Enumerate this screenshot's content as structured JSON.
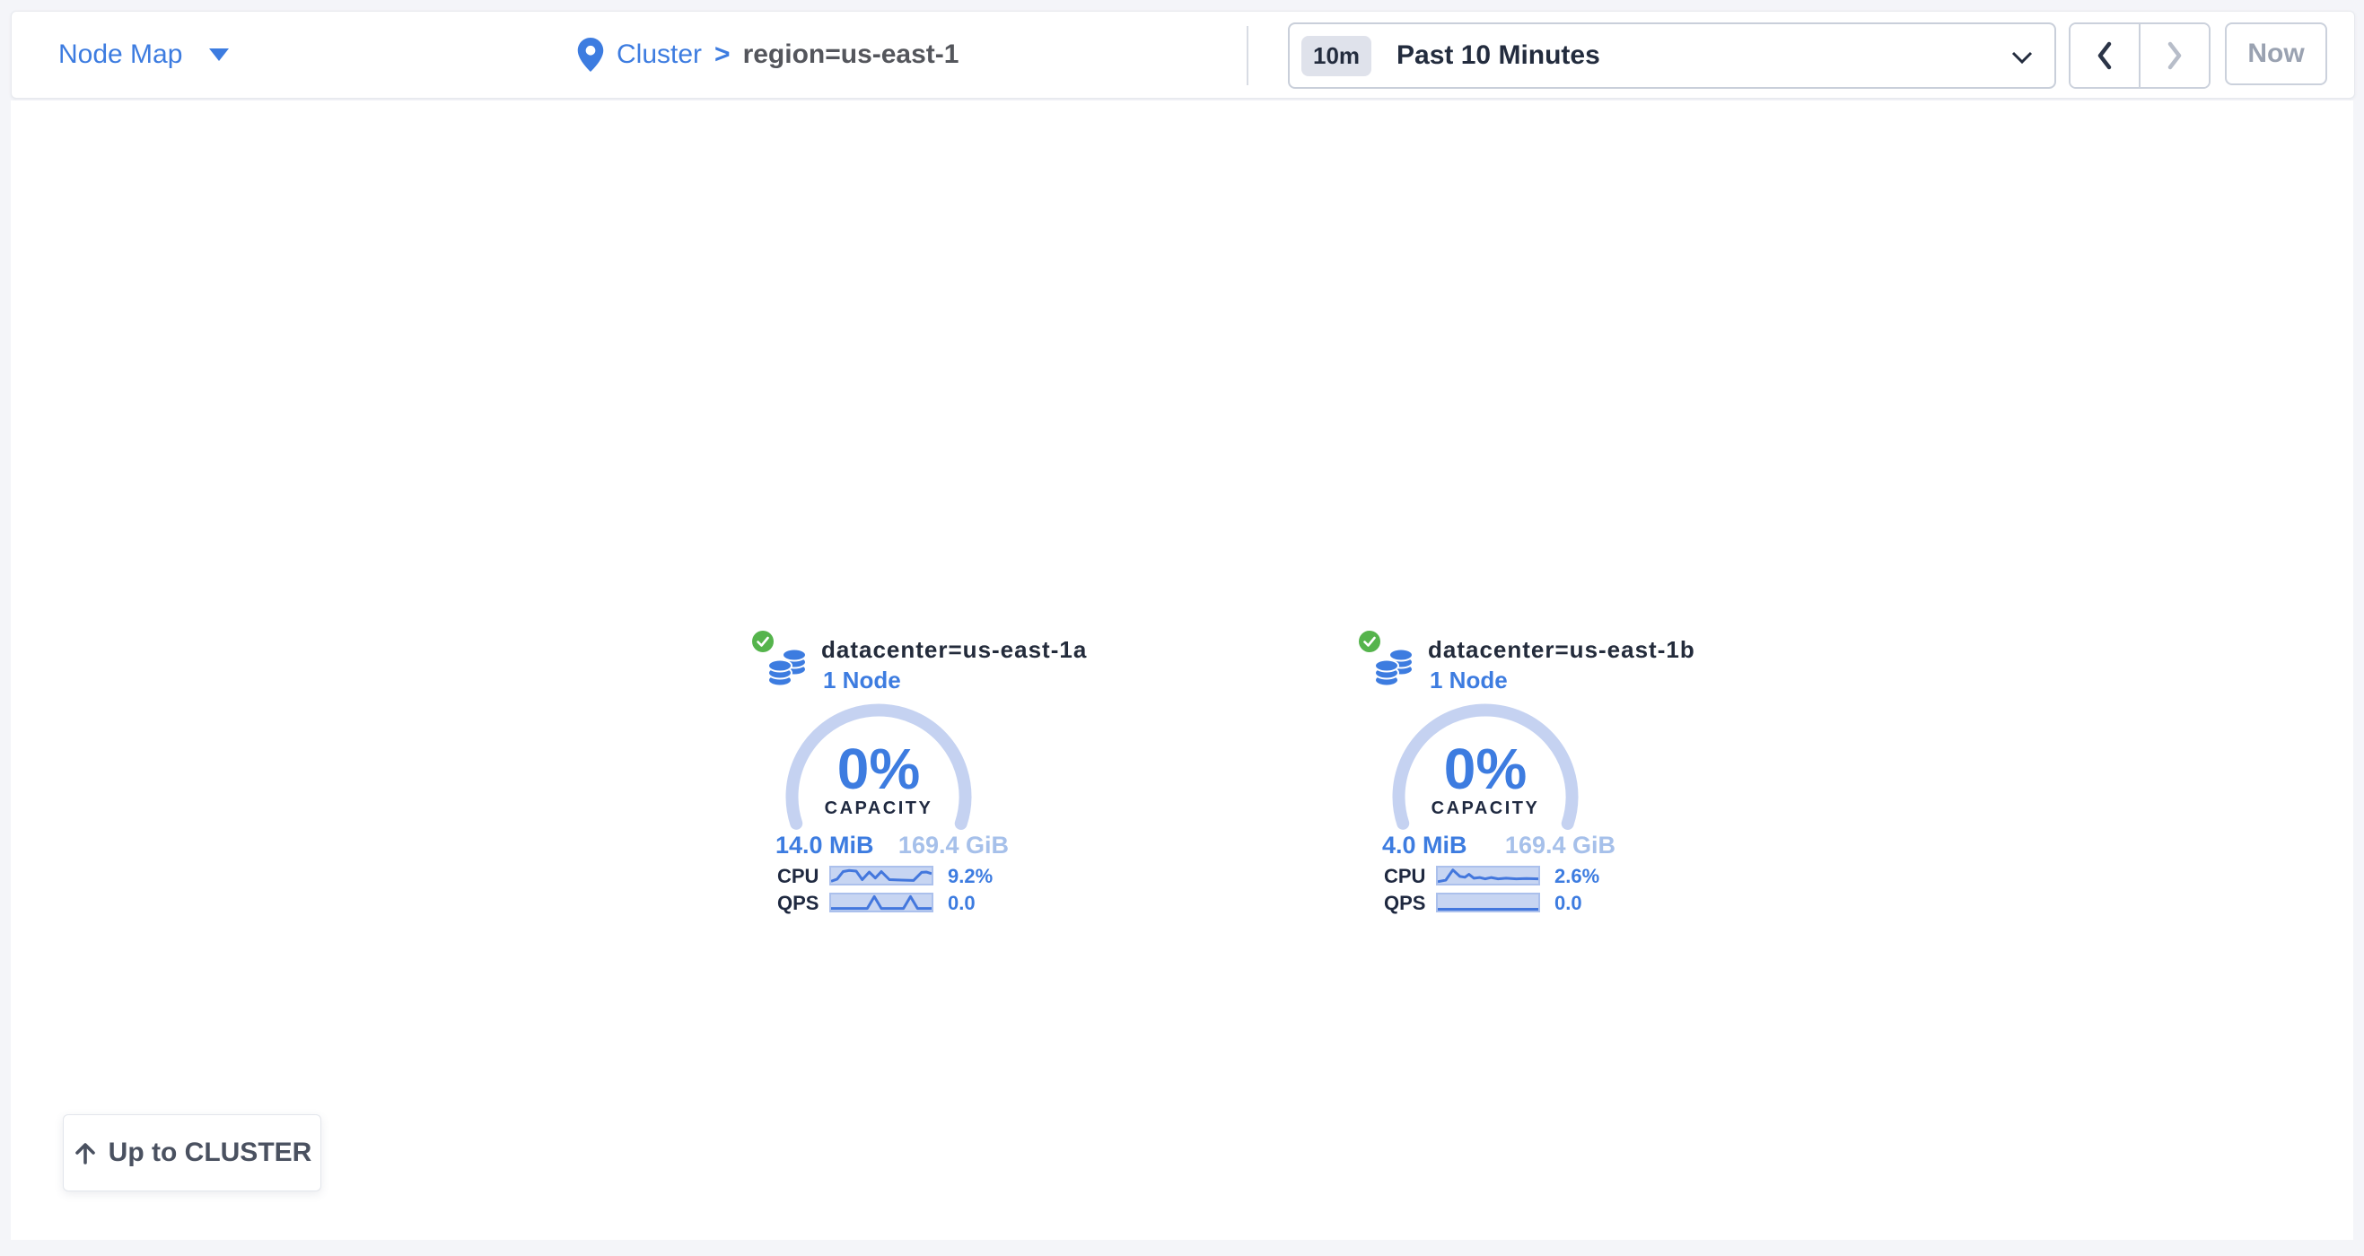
{
  "header": {
    "view_selector": {
      "label": "Node Map"
    },
    "breadcrumb": {
      "root": "Cluster",
      "separator": ">",
      "current": "region=us-east-1"
    },
    "time_window": {
      "badge": "10m",
      "label": "Past 10 Minutes"
    },
    "now_label": "Now"
  },
  "map": {
    "datacenters": [
      {
        "name": "datacenter=us-east-1a",
        "nodes_label": "1 Node",
        "status": "healthy",
        "capacity": {
          "percent": "0%",
          "label": "CAPACITY",
          "used": "14.0 MiB",
          "total": "169.4 GiB"
        },
        "cpu": {
          "label": "CPU",
          "value": "9.2%",
          "spark": [
            [
              0,
              0.85
            ],
            [
              0.06,
              0.72
            ],
            [
              0.12,
              0.25
            ],
            [
              0.18,
              0.18
            ],
            [
              0.25,
              0.22
            ],
            [
              0.31,
              0.75
            ],
            [
              0.38,
              0.28
            ],
            [
              0.44,
              0.65
            ],
            [
              0.5,
              0.25
            ],
            [
              0.58,
              0.75
            ],
            [
              0.7,
              0.78
            ],
            [
              0.82,
              0.8
            ],
            [
              0.9,
              0.3
            ],
            [
              0.95,
              0.28
            ],
            [
              1,
              0.38
            ]
          ]
        },
        "qps": {
          "label": "QPS",
          "value": "0.0",
          "spark": [
            [
              0,
              0.87
            ],
            [
              0.36,
              0.87
            ],
            [
              0.43,
              0.13
            ],
            [
              0.5,
              0.87
            ],
            [
              0.72,
              0.87
            ],
            [
              0.79,
              0.13
            ],
            [
              0.86,
              0.87
            ],
            [
              1,
              0.87
            ]
          ]
        }
      },
      {
        "name": "datacenter=us-east-1b",
        "nodes_label": "1 Node",
        "status": "healthy",
        "capacity": {
          "percent": "0%",
          "label": "CAPACITY",
          "used": "4.0 MiB",
          "total": "169.4 GiB"
        },
        "cpu": {
          "label": "CPU",
          "value": "2.6%",
          "spark": [
            [
              0,
              0.88
            ],
            [
              0.08,
              0.78
            ],
            [
              0.15,
              0.15
            ],
            [
              0.22,
              0.55
            ],
            [
              0.27,
              0.6
            ],
            [
              0.31,
              0.42
            ],
            [
              0.36,
              0.66
            ],
            [
              0.42,
              0.62
            ],
            [
              0.47,
              0.7
            ],
            [
              0.53,
              0.62
            ],
            [
              0.6,
              0.7
            ],
            [
              0.68,
              0.66
            ],
            [
              0.78,
              0.7
            ],
            [
              0.88,
              0.68
            ],
            [
              1,
              0.7
            ]
          ]
        },
        "qps": {
          "label": "QPS",
          "value": "0.0",
          "spark": [
            [
              0,
              0.92
            ],
            [
              1,
              0.92
            ]
          ]
        }
      }
    ],
    "up_button_label": "Up to CLUSTER"
  },
  "colors": {
    "accent_blue": "#3d7ce0",
    "dark_navy": "#1f2940",
    "gauge_arc": "#c5d2f1",
    "capacity_total_blue": "#a6c0ea",
    "healthy_green": "#55b44c",
    "sparkline_band": "#c7d5f2",
    "sparkline_line": "#4377dd",
    "muted_gray": "#9aa2b1",
    "page_background": "#f4f5f9"
  }
}
